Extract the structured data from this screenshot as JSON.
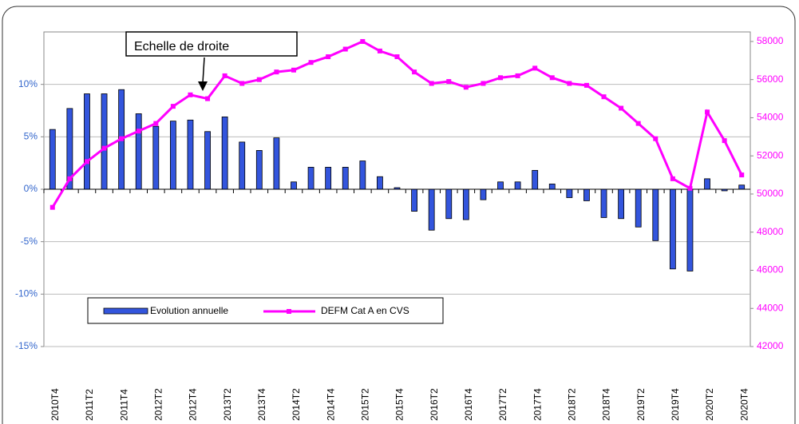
{
  "chart_data": {
    "type": "bar_line",
    "annotation": "Echelle de droite",
    "legend": "lower left",
    "grid": true,
    "categories": [
      "2010T4",
      null,
      "2011T2",
      null,
      "2011T4",
      null,
      "2012T2",
      null,
      "2012T4",
      null,
      "2013T2",
      null,
      "2013T4",
      null,
      "2014T2",
      null,
      "2014T4",
      null,
      "2015T2",
      null,
      "2015T4",
      null,
      "2016T2",
      null,
      "2016T4",
      null,
      "2017T2",
      null,
      "2017T4",
      null,
      "2018T2",
      null,
      "2018T4",
      null,
      "2019T2",
      null,
      "2019T4",
      null,
      "2020T2",
      null,
      "2020T4"
    ],
    "ylim": [
      -15,
      15
    ],
    "yticks": [
      {
        "value": -15,
        "label": "-15%"
      },
      {
        "value": -10,
        "label": "-10%"
      },
      {
        "value": -5,
        "label": "-5%"
      },
      {
        "value": 0,
        "label": "0%"
      },
      {
        "value": 5,
        "label": "5%"
      },
      {
        "value": 10,
        "label": "10%"
      }
    ],
    "y2lim": [
      42000,
      58500
    ],
    "y2ticks": [
      42000,
      44000,
      46000,
      48000,
      50000,
      52000,
      54000,
      56000,
      58000
    ],
    "series": [
      {
        "name": "Evolution annuelle",
        "color": "#3355dd",
        "values": [
          5.7,
          7.7,
          9.1,
          9.1,
          9.5,
          7.2,
          6.0,
          6.5,
          6.6,
          5.5,
          6.9,
          4.5,
          3.7,
          4.9,
          0.7,
          2.1,
          2.1,
          2.1,
          2.7,
          1.2,
          0.15,
          -2.1,
          -3.9,
          -2.8,
          -2.9,
          -1.0,
          0.7,
          0.7,
          1.8,
          0.5,
          -0.8,
          -1.1,
          -2.7,
          -2.8,
          -3.6,
          -4.9,
          -7.6,
          -7.8,
          1.0,
          -0.15,
          0.4
        ]
      },
      {
        "name": "DEFM Cat A en CVS",
        "color": "#ff00ff",
        "axis": "y2",
        "values": [
          49300,
          50800,
          51700,
          52400,
          52900,
          53300,
          53700,
          54600,
          55200,
          55000,
          56200,
          55800,
          56000,
          56400,
          56500,
          56900,
          57200,
          57600,
          58000,
          57500,
          57200,
          56400,
          55800,
          55900,
          55600,
          55800,
          56100,
          56200,
          56600,
          56100,
          55800,
          55700,
          55100,
          54500,
          53700,
          52900,
          50800,
          50300,
          54300,
          52800,
          51000
        ]
      }
    ]
  }
}
